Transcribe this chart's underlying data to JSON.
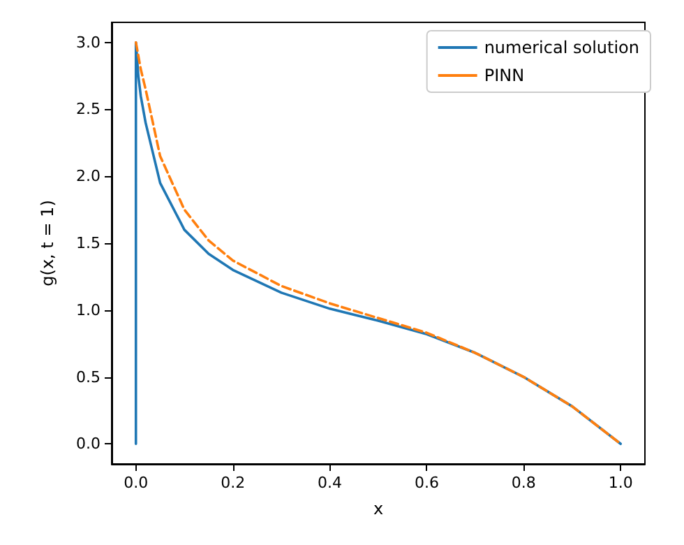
{
  "chart_data": {
    "type": "line",
    "xlabel": "x",
    "ylabel": "g(x, t = 1)",
    "xlim": [
      -0.05,
      1.05
    ],
    "ylim": [
      -0.15,
      3.15
    ],
    "xticks": [
      {
        "value": 0,
        "label": "0.0"
      },
      {
        "value": 0.2,
        "label": "0.2"
      },
      {
        "value": 0.4,
        "label": "0.4"
      },
      {
        "value": 0.6,
        "label": "0.6"
      },
      {
        "value": 0.8,
        "label": "0.8"
      },
      {
        "value": 1,
        "label": "1.0"
      }
    ],
    "yticks": [
      {
        "value": 0,
        "label": "0.0"
      },
      {
        "value": 0.5,
        "label": "0.5"
      },
      {
        "value": 1,
        "label": "1.0"
      },
      {
        "value": 1.5,
        "label": "1.5"
      },
      {
        "value": 2,
        "label": "2.0"
      },
      {
        "value": 2.5,
        "label": "2.5"
      },
      {
        "value": 3,
        "label": "3.0"
      }
    ],
    "legend": "top right",
    "grid": false,
    "marker": "none",
    "series": [
      {
        "name": "numerical solution",
        "color": "#1f77b4",
        "line_style": "solid",
        "x": [
          0,
          0,
          0.005,
          0.01,
          0.02,
          0.05,
          0.1,
          0.15,
          0.2,
          0.3,
          0.4,
          0.5,
          0.6,
          0.7,
          0.8,
          0.9,
          1
        ],
        "values": [
          0,
          3,
          2.75,
          2.6,
          2.4,
          1.95,
          1.6,
          1.42,
          1.3,
          1.13,
          1.01,
          0.92,
          0.82,
          0.68,
          0.5,
          0.28,
          0
        ]
      },
      {
        "name": "PINN",
        "color": "#ff7f0e",
        "line_style": "dashed",
        "x": [
          0,
          0.01,
          0.02,
          0.05,
          0.1,
          0.15,
          0.2,
          0.3,
          0.4,
          0.5,
          0.6,
          0.7,
          0.8,
          0.9,
          1
        ],
        "values": [
          3,
          2.8,
          2.65,
          2.15,
          1.75,
          1.52,
          1.37,
          1.18,
          1.05,
          0.94,
          0.83,
          0.68,
          0.5,
          0.28,
          0
        ]
      }
    ]
  }
}
